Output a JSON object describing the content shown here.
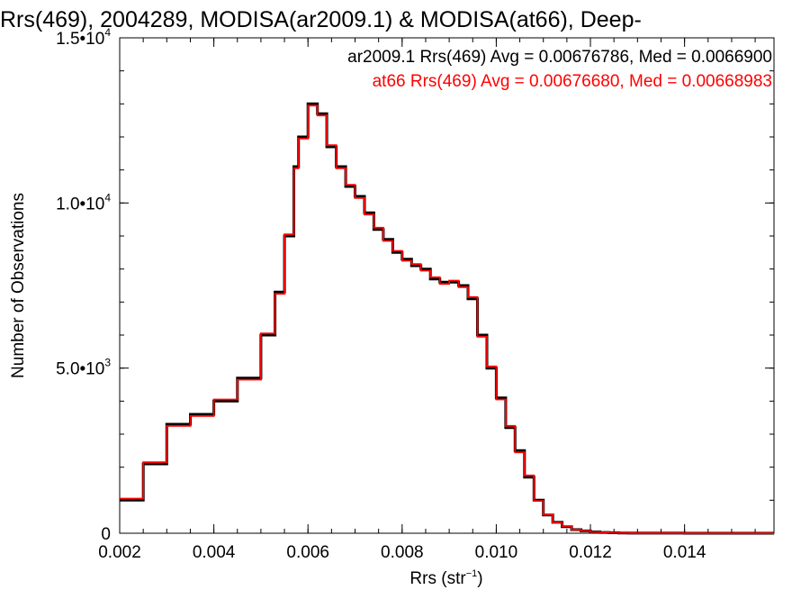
{
  "chart_data": {
    "type": "line",
    "title": "Rrs(469), 2004289, MODISA(ar2009.1) & MODISA(at66), Deep-",
    "xlabel": "Rrs (str",
    "xlabel_sup": "−1",
    "xlabel_close": ")",
    "ylabel": "Number of Observations",
    "xlim": [
      0.002,
      0.0159
    ],
    "ylim": [
      0,
      15000
    ],
    "x_ticks": [
      0.002,
      0.004,
      0.006,
      0.008,
      0.01,
      0.012,
      0.014
    ],
    "x_tick_labels": [
      "0.002",
      "0.004",
      "0.006",
      "0.008",
      "0.010",
      "0.012",
      "0.014"
    ],
    "y_ticks": [
      {
        "value": 0,
        "mant": "0",
        "exp": ""
      },
      {
        "value": 5000,
        "mant": "5.0•10",
        "exp": "3"
      },
      {
        "value": 10000,
        "mant": "1.0•10",
        "exp": "4"
      },
      {
        "value": 15000,
        "mant": "1.5•10",
        "exp": "4"
      }
    ],
    "annotations": [
      {
        "text": "ar2009.1 Rrs(469) Avg = 0.00676786, Med = 0.0066900",
        "color": "#000000"
      },
      {
        "text": "at66 Rrs(469) Avg = 0.00676680, Med = 0.00668983",
        "color": "#ff0000"
      }
    ],
    "x": [
      0.002,
      0.0025,
      0.003,
      0.0035,
      0.004,
      0.0045,
      0.005,
      0.0053,
      0.0055,
      0.0057,
      0.0058,
      0.006,
      0.0062,
      0.0064,
      0.0066,
      0.0068,
      0.007,
      0.0072,
      0.0074,
      0.0076,
      0.0078,
      0.008,
      0.0082,
      0.0084,
      0.0086,
      0.0088,
      0.009,
      0.0092,
      0.0094,
      0.0096,
      0.0098,
      0.01,
      0.0102,
      0.0104,
      0.0106,
      0.0108,
      0.011,
      0.0112,
      0.0114,
      0.0116,
      0.0118,
      0.012,
      0.0122,
      0.0124,
      0.0126,
      0.0128,
      0.013,
      0.014,
      0.0159
    ],
    "series": [
      {
        "name": "ar2009.1",
        "color": "#000000",
        "values": [
          1000,
          2100,
          3300,
          3600,
          4000,
          4700,
          6000,
          7300,
          9000,
          11100,
          12000,
          13000,
          12700,
          11700,
          11100,
          10500,
          10200,
          9700,
          9200,
          8900,
          8500,
          8300,
          8100,
          8000,
          7700,
          7600,
          7600,
          7500,
          7100,
          6000,
          5000,
          4100,
          3200,
          2500,
          1700,
          1000,
          550,
          330,
          200,
          110,
          70,
          40,
          25,
          15,
          8,
          4,
          2,
          0,
          0
        ]
      },
      {
        "name": "at66",
        "color": "#ff0000",
        "values": [
          1050,
          2150,
          3250,
          3550,
          4050,
          4650,
          6050,
          7250,
          9050,
          11050,
          11950,
          12950,
          12650,
          11750,
          11050,
          10550,
          10150,
          9650,
          9250,
          8850,
          8550,
          8250,
          8150,
          7950,
          7750,
          7550,
          7650,
          7450,
          7150,
          5950,
          5050,
          4050,
          3250,
          2450,
          1750,
          980,
          560,
          320,
          210,
          105,
          72,
          38,
          26,
          14,
          9,
          4,
          2,
          0,
          0
        ]
      }
    ],
    "grid": false,
    "legend": "top-right annotations"
  }
}
